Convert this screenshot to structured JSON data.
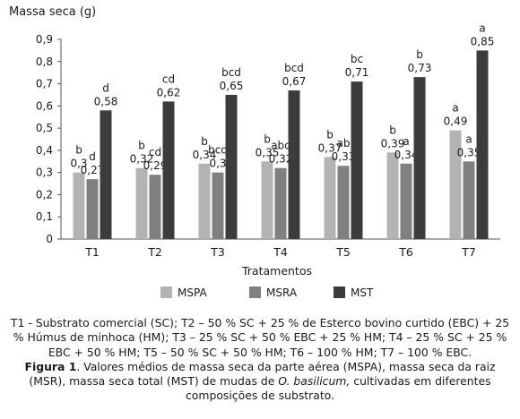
{
  "chart_data": {
    "type": "bar",
    "ylabel": "Massa seca (g)",
    "xlabel": "Tratamentos",
    "categories": [
      "T1",
      "T2",
      "T3",
      "T4",
      "T5",
      "T6",
      "T7"
    ],
    "ylim": [
      0,
      0.9
    ],
    "yticks": [
      "0",
      "0,1",
      "0,2",
      "0,3",
      "0,4",
      "0,5",
      "0,6",
      "0,7",
      "0,8",
      "0,9"
    ],
    "grid": false,
    "legend_position": "bottom",
    "series": [
      {
        "name": "MSPA",
        "color": "#b3b3b3",
        "values": [
          0.3,
          0.32,
          0.34,
          0.35,
          0.37,
          0.39,
          0.49
        ],
        "value_labels": [
          "0,3",
          "0,32",
          "0,34",
          "0,35",
          "0,37",
          "0,39",
          "0,49"
        ],
        "letters": [
          "b",
          "b",
          "b",
          "b",
          "b",
          "b",
          "a"
        ]
      },
      {
        "name": "MSRA",
        "color": "#808080",
        "values": [
          0.27,
          0.29,
          0.3,
          0.32,
          0.33,
          0.34,
          0.35
        ],
        "value_labels": [
          "0,27",
          "0,29",
          "0,3",
          "0,32",
          "0,33",
          "0,34",
          "0,35"
        ],
        "letters": [
          "d",
          "cd",
          "bcd",
          "abc",
          "ab",
          "a",
          "a"
        ]
      },
      {
        "name": "MST",
        "color": "#3c3c3c",
        "values": [
          0.58,
          0.62,
          0.65,
          0.67,
          0.71,
          0.73,
          0.85
        ],
        "value_labels": [
          "0,58",
          "0,62",
          "0,65",
          "0,67",
          "0,71",
          "0,73",
          "0,85"
        ],
        "letters": [
          "d",
          "cd",
          "bcd",
          "bcd",
          "bc",
          "b",
          "a"
        ]
      }
    ]
  },
  "caption": {
    "treatments": "T1 - Substrato comercial (SC); T2 – 50 % SC + 25 % de Esterco bovino curtido (EBC) + 25 % Húmus de minhoca (HM); T3 – 25 % SC + 50 % EBC + 25 % HM; T4 – 25 % SC + 25 % EBC + 50 % HM; T5 – 50 % SC + 50 % HM; T6 – 100 % HM; T7 – 100 % EBC.",
    "figure_label": "Figura 1",
    "text_part1": ". Valores médios de massa seca da parte aérea (MSPA), massa seca da raiz (MSR), massa seca total (MST) de mudas de ",
    "species": "O. basilicum,",
    "text_part2": " cultivadas em diferentes composições de substrato."
  }
}
